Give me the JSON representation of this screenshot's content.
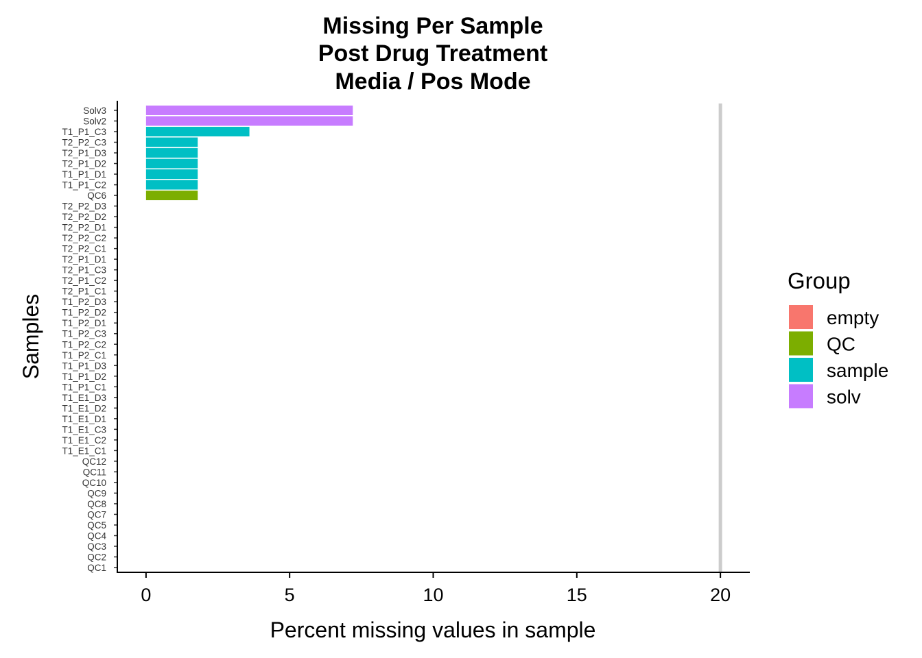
{
  "chart_data": {
    "type": "bar",
    "orientation": "horizontal",
    "title": [
      "Missing Per Sample",
      "Post Drug Treatment",
      "Media / Pos Mode"
    ],
    "xlabel": "Percent missing values in sample",
    "ylabel": "Samples",
    "xlim": [
      -1,
      21
    ],
    "xticks": [
      0,
      5,
      10,
      15,
      20
    ],
    "reference_line": {
      "x": 20,
      "color": "#CCCCCC"
    },
    "grid": false,
    "legend": {
      "title": "Group",
      "placement": "right",
      "entries": [
        {
          "name": "empty",
          "color": "#F8766D"
        },
        {
          "name": "QC",
          "color": "#7CAE00"
        },
        {
          "name": "sample",
          "color": "#00BFC4"
        },
        {
          "name": "solv",
          "color": "#C77CFF"
        }
      ]
    },
    "categories": [
      "QC1",
      "QC2",
      "QC3",
      "QC4",
      "QC5",
      "QC7",
      "QC8",
      "QC9",
      "QC10",
      "QC11",
      "QC12",
      "T1_E1_C1",
      "T1_E1_C2",
      "T1_E1_C3",
      "T1_E1_D1",
      "T1_E1_D2",
      "T1_E1_D3",
      "T1_P1_C1",
      "T1_P1_D2",
      "T1_P1_D3",
      "T1_P2_C1",
      "T1_P2_C2",
      "T1_P2_C3",
      "T1_P2_D1",
      "T1_P2_D2",
      "T1_P2_D3",
      "T2_P1_C1",
      "T2_P1_C2",
      "T2_P1_C3",
      "T2_P1_D1",
      "T2_P2_C1",
      "T2_P2_C2",
      "T2_P2_D1",
      "T2_P2_D2",
      "T2_P2_D3",
      "QC6",
      "T1_P1_C2",
      "T1_P1_D1",
      "T2_P1_D2",
      "T2_P1_D3",
      "T2_P2_C3",
      "T1_P1_C3",
      "Solv2",
      "Solv3"
    ],
    "values": [
      0,
      0,
      0,
      0,
      0,
      0,
      0,
      0,
      0,
      0,
      0,
      0,
      0,
      0,
      0,
      0,
      0,
      0,
      0,
      0,
      0,
      0,
      0,
      0,
      0,
      0,
      0,
      0,
      0,
      0,
      0,
      0,
      0,
      0,
      0,
      1.8,
      1.8,
      1.8,
      1.8,
      1.8,
      1.8,
      3.6,
      7.2,
      7.2
    ],
    "groups": [
      "QC",
      "QC",
      "QC",
      "QC",
      "QC",
      "QC",
      "QC",
      "QC",
      "QC",
      "QC",
      "QC",
      "sample",
      "sample",
      "sample",
      "sample",
      "sample",
      "sample",
      "sample",
      "sample",
      "sample",
      "sample",
      "sample",
      "sample",
      "sample",
      "sample",
      "sample",
      "sample",
      "sample",
      "sample",
      "sample",
      "sample",
      "sample",
      "sample",
      "sample",
      "sample",
      "QC",
      "sample",
      "sample",
      "sample",
      "sample",
      "sample",
      "sample",
      "solv",
      "solv"
    ]
  }
}
